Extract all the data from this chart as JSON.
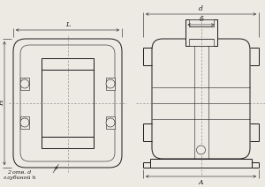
{
  "background_color": "#ede9e3",
  "line_color": "#1a1a1a",
  "fig_width": 3.0,
  "fig_height": 2.12,
  "dpi": 100,
  "annotation_text1": "2 отв. d",
  "annotation_text2": "глубиной h",
  "dim_L": "L",
  "dim_H": "H",
  "dim_d": "d",
  "dim_b": "б",
  "dim_A": "A"
}
